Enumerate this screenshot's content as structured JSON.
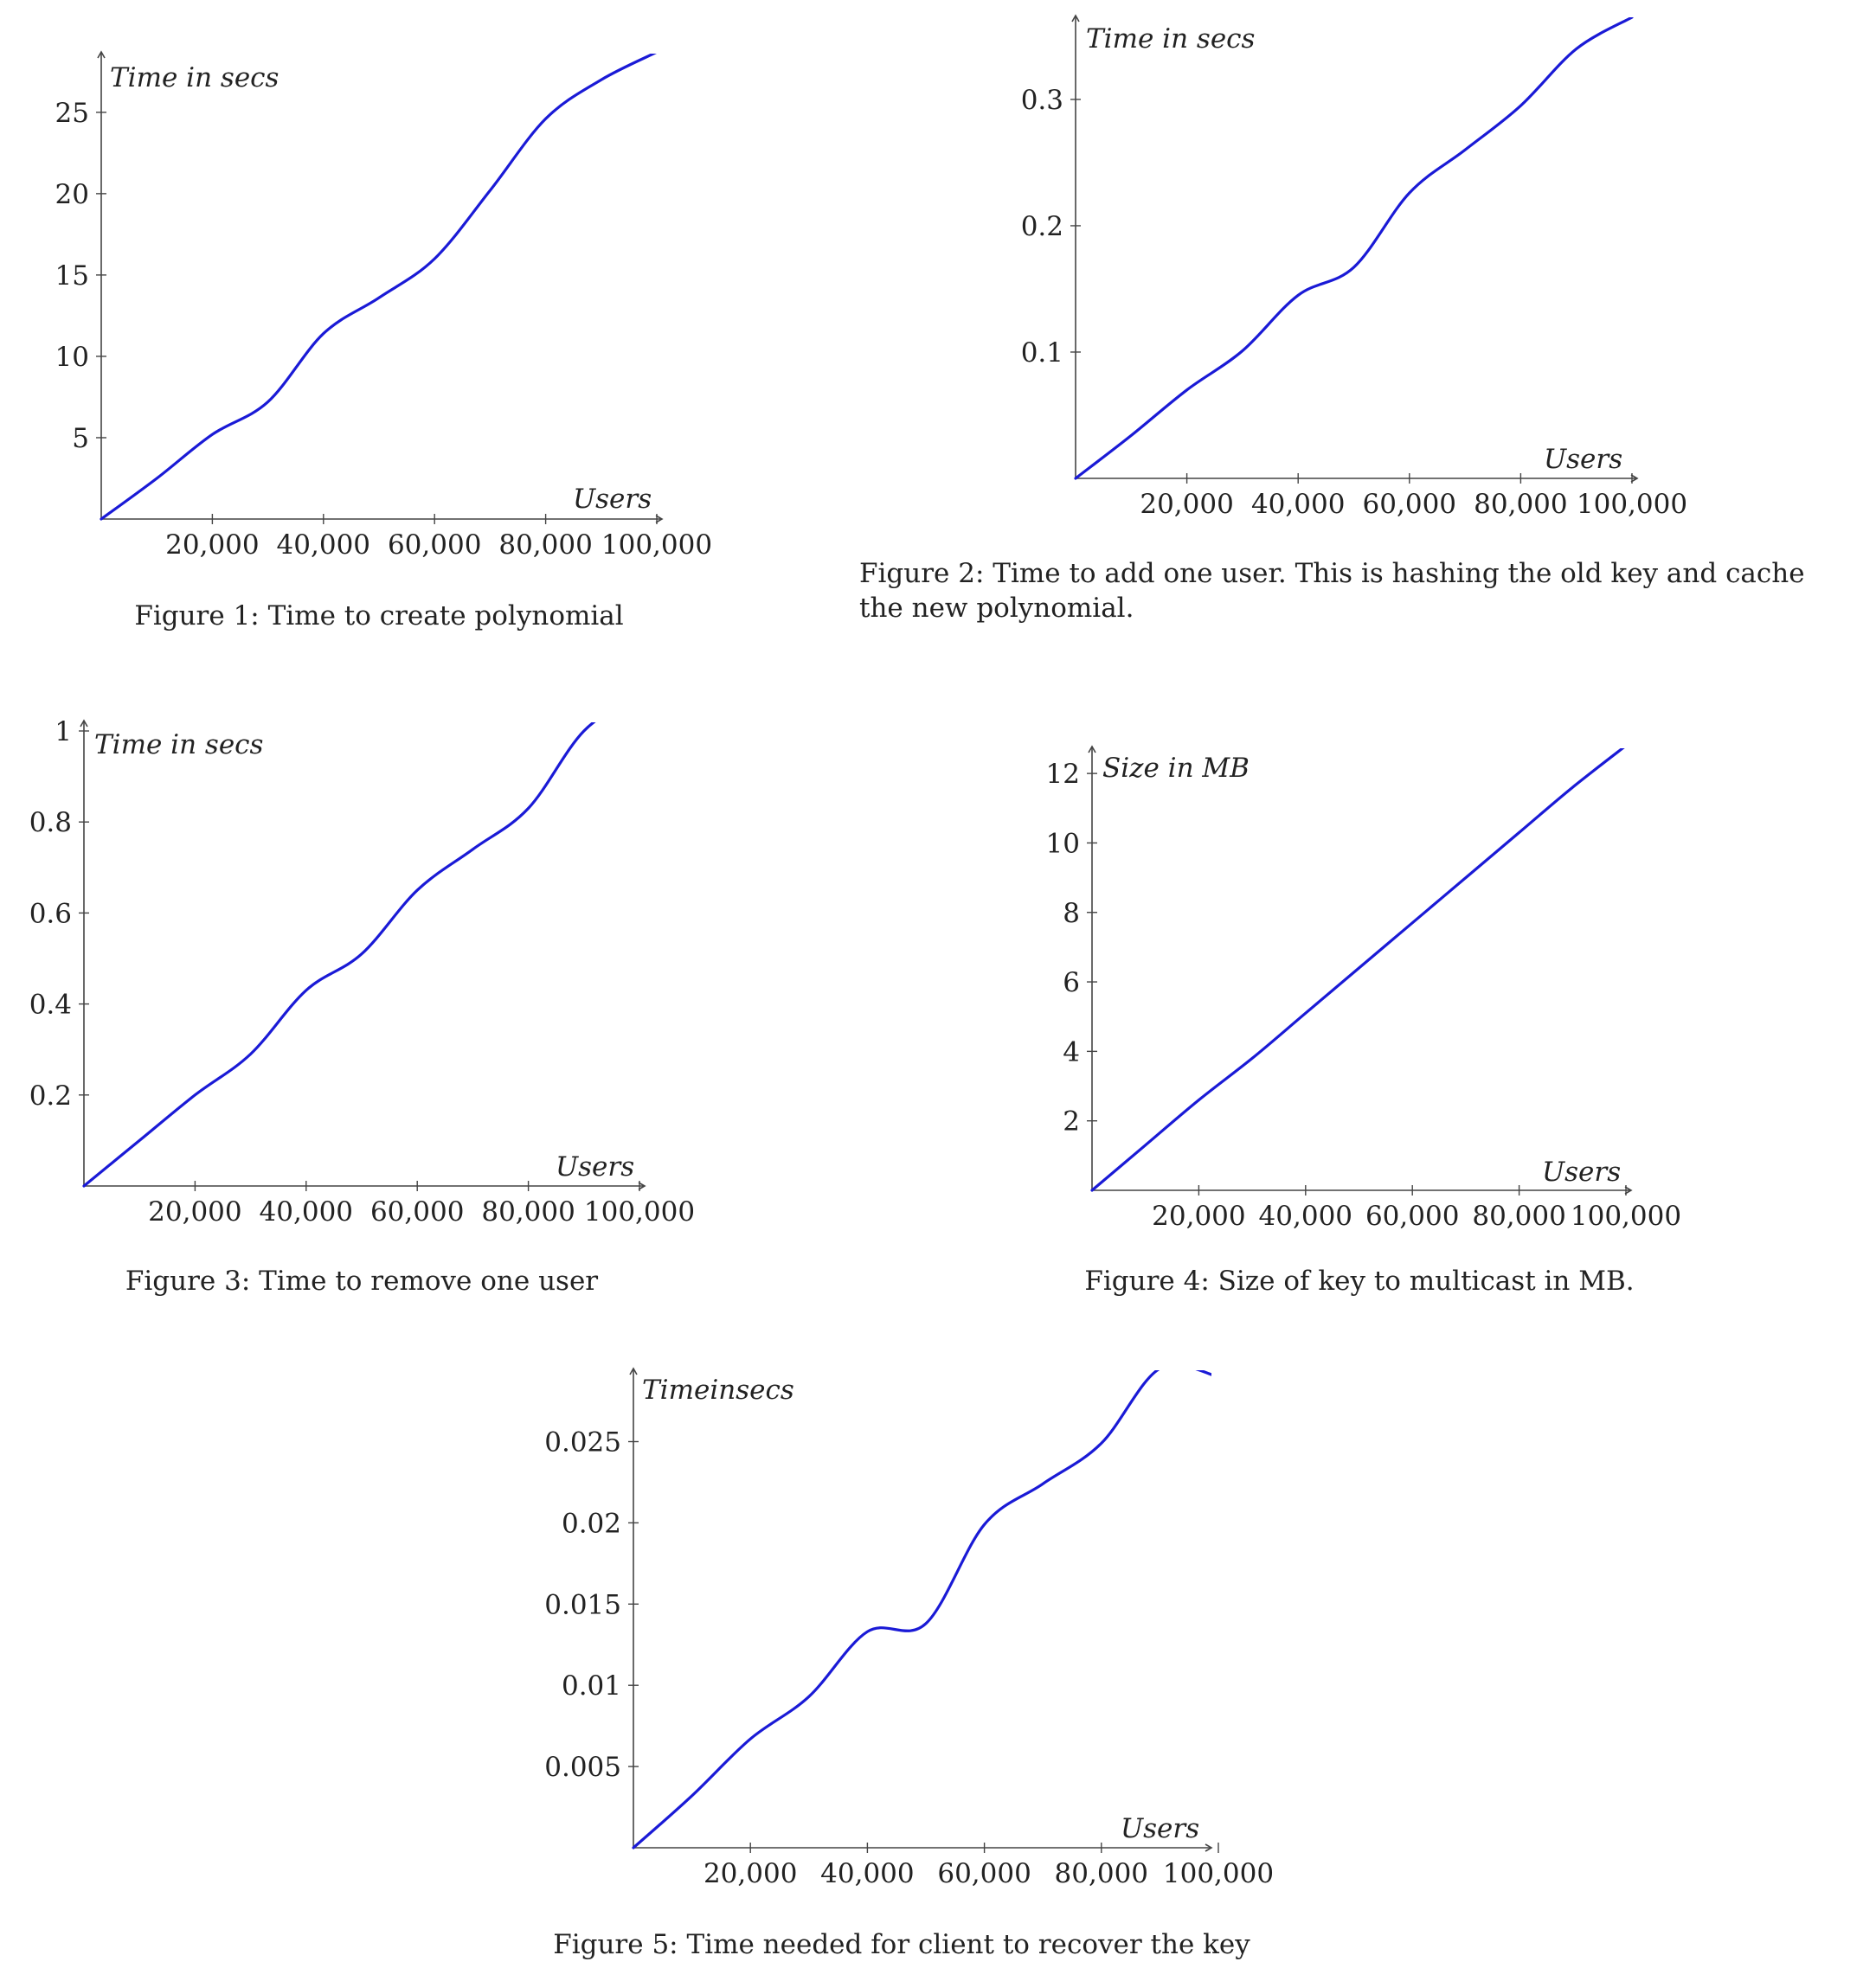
{
  "colors": {
    "line": "#1a1ad6",
    "axis": "#444444",
    "text": "#222222"
  },
  "chart_data": [
    {
      "type": "line",
      "xlabel": "Users",
      "ylabel": "Time in secs",
      "caption": "Figure 1: Time to create polynomial",
      "xlim": [
        0,
        100000
      ],
      "ylim": [
        0,
        28.5
      ],
      "xticks": [
        20000,
        40000,
        60000,
        80000,
        100000
      ],
      "xtick_labels": [
        "20,000",
        "40,000",
        "60,000",
        "80,000",
        "100,000"
      ],
      "yticks": [
        5,
        10,
        15,
        20,
        25
      ],
      "ytick_labels": [
        "5",
        "10",
        "15",
        "20",
        "25"
      ],
      "series": [
        {
          "x": [
            0,
            10000,
            20000,
            30000,
            40000,
            50000,
            60000,
            70000,
            80000,
            90000,
            100000
          ],
          "y": [
            0,
            2.5,
            5.2,
            7.2,
            11.4,
            13.6,
            16,
            20.2,
            24.6,
            27,
            28.7
          ]
        }
      ]
    },
    {
      "type": "line",
      "xlabel": "Users",
      "ylabel": "Time in secs",
      "caption": "Figure 2: Time to add one user. This is hashing the old key and cache the new polynomial.",
      "xlim": [
        0,
        100000
      ],
      "ylim": [
        0,
        0.365
      ],
      "xticks": [
        20000,
        40000,
        60000,
        80000,
        100000
      ],
      "xtick_labels": [
        "20,000",
        "40,000",
        "60,000",
        "80,000",
        "100,000"
      ],
      "yticks": [
        0.1,
        0.2,
        0.3
      ],
      "ytick_labels": [
        "0.1",
        "0.2",
        "0.3"
      ],
      "series": [
        {
          "x": [
            0,
            10000,
            20000,
            30000,
            40000,
            50000,
            60000,
            70000,
            80000,
            90000,
            100000
          ],
          "y": [
            0,
            0.034,
            0.07,
            0.101,
            0.145,
            0.167,
            0.226,
            0.26,
            0.295,
            0.34,
            0.365
          ]
        }
      ]
    },
    {
      "type": "line",
      "xlabel": "Users",
      "ylabel": "Time in secs",
      "caption": "Figure 3: Time to remove one user",
      "xlim": [
        0,
        100000
      ],
      "ylim": [
        0,
        1
      ],
      "xticks": [
        20000,
        40000,
        60000,
        80000,
        100000
      ],
      "xtick_labels": [
        "20,000",
        "40,000",
        "60,000",
        "80,000",
        "100,000"
      ],
      "yticks": [
        0.2,
        0.4,
        0.6,
        0.8,
        1
      ],
      "ytick_labels": [
        "0.2",
        "0.4",
        "0.6",
        "0.8",
        "1"
      ],
      "series": [
        {
          "x": [
            0,
            10000,
            20000,
            30000,
            40000,
            50000,
            60000,
            70000,
            80000,
            90000,
            100000
          ],
          "y": [
            0,
            0.1,
            0.2,
            0.29,
            0.43,
            0.51,
            0.65,
            0.74,
            0.83,
            1.0,
            1.08
          ]
        }
      ]
    },
    {
      "type": "line",
      "xlabel": "Users",
      "ylabel": "Size in MB",
      "caption": "Figure 4: Size of key to multicast in MB.",
      "xlim": [
        0,
        100000
      ],
      "ylim": [
        0,
        12.8
      ],
      "xticks": [
        20000,
        40000,
        60000,
        80000,
        100000
      ],
      "xtick_labels": [
        "20,000",
        "40,000",
        "60,000",
        "80,000",
        "100,000"
      ],
      "yticks": [
        2,
        4,
        6,
        8,
        10,
        12
      ],
      "ytick_labels": [
        "2",
        "4",
        "6",
        "8",
        "10",
        "12"
      ],
      "series": [
        {
          "x": [
            0,
            10000,
            20000,
            30000,
            40000,
            50000,
            60000,
            70000,
            80000,
            90000,
            100000
          ],
          "y": [
            0,
            1.3,
            2.6,
            3.8,
            5.1,
            6.4,
            7.7,
            9.0,
            10.3,
            11.6,
            12.8
          ]
        }
      ]
    },
    {
      "type": "line",
      "xlabel": "Users",
      "ylabel": "Timeinsecs",
      "caption": "Figure 5: Time needed for client to recover the key",
      "xlim": [
        0,
        100000
      ],
      "ylim": [
        0,
        0.0295
      ],
      "xticks": [
        20000,
        40000,
        60000,
        80000,
        100000
      ],
      "xtick_labels": [
        "20,000",
        "40,000",
        "60,000",
        "80,000",
        "100,000"
      ],
      "yticks": [
        0.005,
        0.01,
        0.015,
        0.02,
        0.025
      ],
      "ytick_labels": [
        "0.005",
        "0.01",
        "0.015",
        "0.02",
        "0.025"
      ],
      "series": [
        {
          "x": [
            0,
            10000,
            20000,
            30000,
            40000,
            50000,
            60000,
            70000,
            80000,
            90000,
            100000
          ],
          "y": [
            0,
            0.0032,
            0.0067,
            0.0093,
            0.0133,
            0.0138,
            0.0199,
            0.0224,
            0.0249,
            0.0295,
            0.029
          ]
        }
      ]
    }
  ]
}
